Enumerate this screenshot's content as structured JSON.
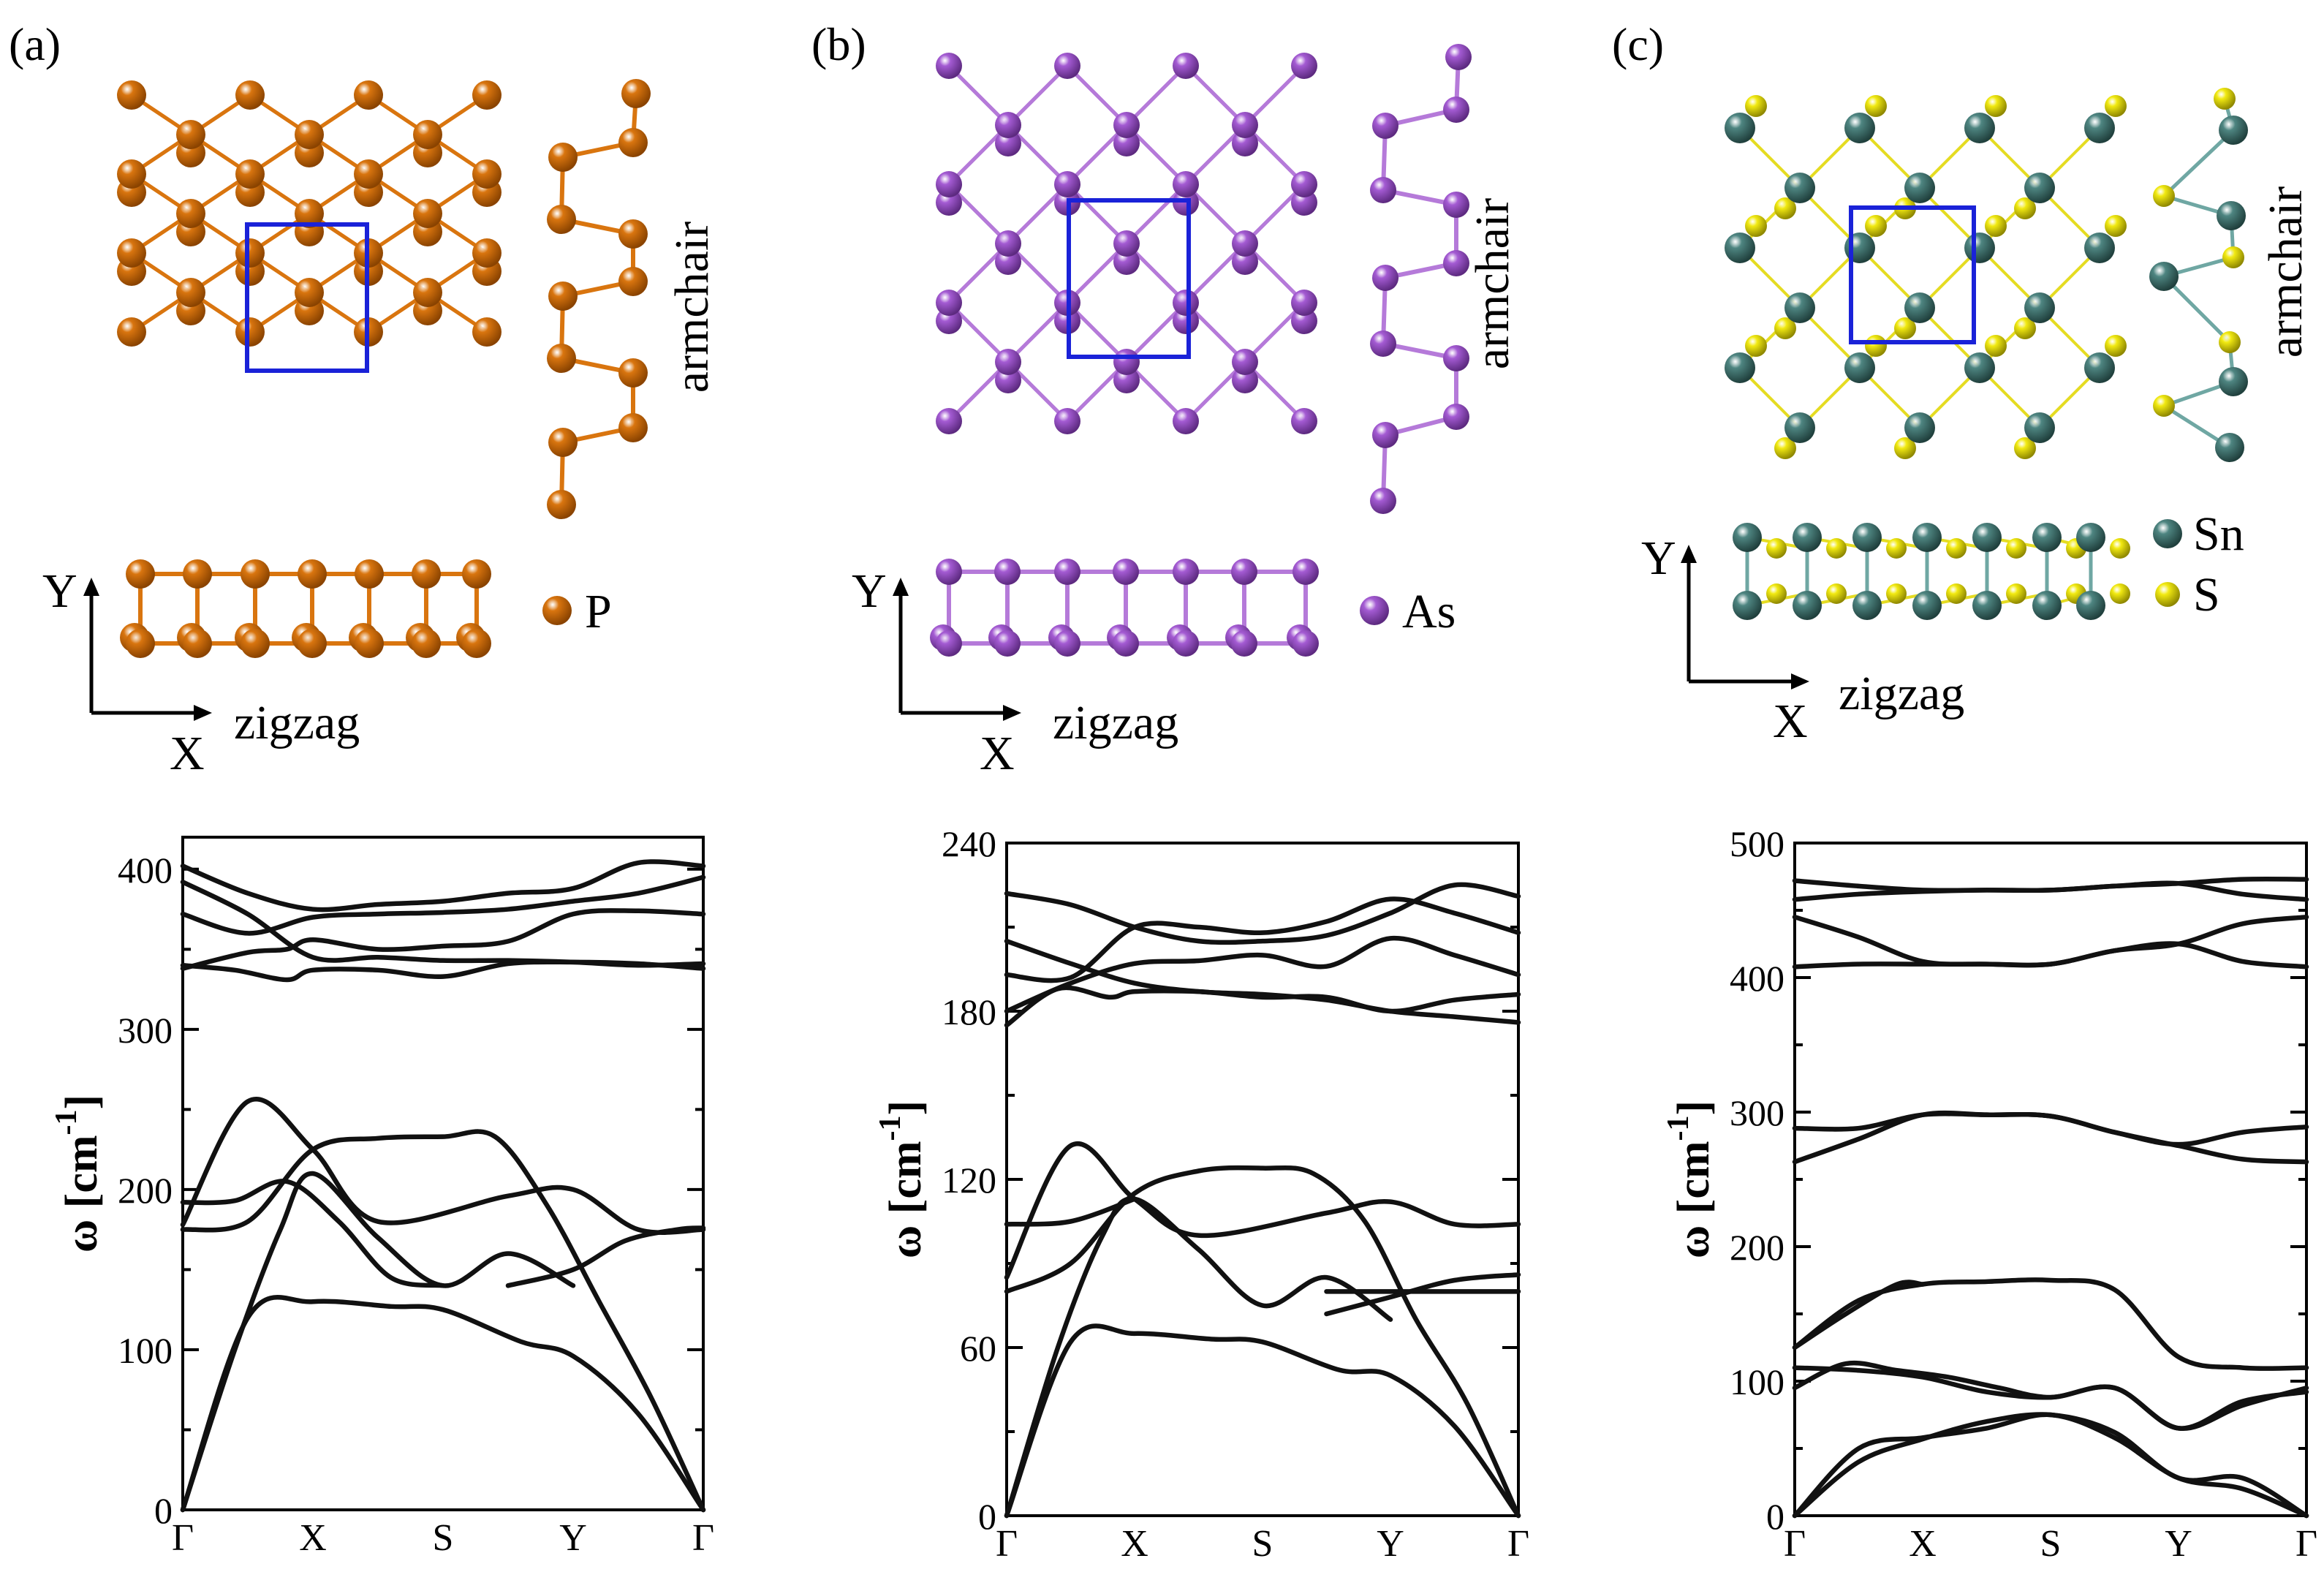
{
  "panels": [
    {
      "id": "a",
      "label": "(a)",
      "elements": [
        {
          "symbol": "P",
          "color": "#d9750f",
          "dark": "#8a4300"
        }
      ],
      "armchair_label": "armchair",
      "zigzag_label": "zigzag",
      "x_axis": "X",
      "y_axis": "Y"
    },
    {
      "id": "b",
      "label": "(b)",
      "elements": [
        {
          "symbol": "As",
          "color": "#a45bd3",
          "dark": "#5d2a80"
        }
      ],
      "armchair_label": "armchair",
      "zigzag_label": "zigzag",
      "x_axis": "X",
      "y_axis": "Y"
    },
    {
      "id": "c",
      "label": "(c)",
      "elements": [
        {
          "symbol": "Sn",
          "color": "#4e8581",
          "dark": "#20403d"
        },
        {
          "symbol": "S",
          "color": "#f2ea12",
          "dark": "#8f8800"
        }
      ],
      "armchair_label": "armchair",
      "zigzag_label": "zigzag",
      "x_axis": "X",
      "y_axis": "Y"
    }
  ],
  "unit_cell_color": "#1a22d8",
  "chart_data": [
    {
      "type": "line",
      "panel": "a",
      "ylabel_main": "ω [cm",
      "ylabel_sup": "-1",
      "ylabel_close": "]",
      "xtick_labels": [
        "Γ",
        "X",
        "S",
        "Y",
        "Γ"
      ],
      "xtick_positions": [
        0,
        1,
        2,
        3,
        4
      ],
      "ylim": [
        0,
        420
      ],
      "yticks": [
        0,
        100,
        200,
        300,
        400
      ],
      "series": [
        {
          "x": [
            0,
            0.5,
            1,
            1.6,
            2,
            2.6,
            3,
            3.5,
            4
          ],
          "y": [
            0,
            120,
            130,
            127,
            125,
            105,
            96,
            60,
            0
          ]
        },
        {
          "x": [
            0,
            0.4,
            0.75,
            1,
            1.5,
            2,
            2.5,
            3
          ],
          "y": [
            0,
            100,
            175,
            210,
            170,
            140,
            160,
            140
          ]
        },
        {
          "x": [
            0,
            0.5,
            1,
            1.5,
            2,
            2.4,
            2.8,
            3.2,
            3.6,
            4
          ],
          "y": [
            175,
            180,
            225,
            232,
            233,
            233,
            190,
            130,
            70,
            0
          ]
        },
        {
          "x": [
            0,
            0.5,
            1,
            1.5,
            2.5,
            3,
            3.5,
            4
          ],
          "y": [
            178,
            255,
            225,
            180,
            196,
            200,
            175,
            175
          ]
        },
        {
          "x": [
            0,
            0.4,
            0.8,
            1.2,
            1.6,
            2
          ],
          "y": [
            192,
            193,
            205,
            180,
            145,
            140
          ]
        },
        {
          "x": [
            2.5,
            3,
            3.4,
            3.8,
            4
          ],
          "y": [
            140,
            150,
            168,
            175,
            176
          ]
        },
        {
          "x": [
            0,
            0.4,
            0.8,
            1,
            1.5,
            2,
            2.5,
            3,
            3.5,
            4
          ],
          "y": [
            340,
            337,
            331,
            337,
            337,
            333,
            341,
            342,
            341,
            338
          ]
        },
        {
          "x": [
            0,
            0.5,
            0.8,
            1,
            1.5,
            2,
            2.5,
            3,
            3.5,
            4
          ],
          "y": [
            338,
            348,
            350,
            356,
            350,
            352,
            355,
            372,
            374,
            372
          ]
        },
        {
          "x": [
            0,
            0.5,
            1,
            1.5,
            2,
            2.5,
            3,
            3.5,
            4
          ],
          "y": [
            372,
            360,
            370,
            372,
            373,
            375,
            380,
            385,
            395
          ]
        },
        {
          "x": [
            0,
            0.5,
            1,
            1.5,
            2,
            2.5,
            3,
            3.5,
            4
          ],
          "y": [
            402,
            385,
            375,
            378,
            380,
            385,
            388,
            404,
            402
          ]
        },
        {
          "x": [
            0,
            0.5,
            1,
            1.5,
            2,
            2.5,
            3,
            3.5,
            4
          ],
          "y": [
            392,
            372,
            345,
            345,
            343,
            343,
            342,
            340,
            341
          ]
        }
      ]
    },
    {
      "type": "line",
      "panel": "b",
      "ylabel_main": "ω [cm",
      "ylabel_sup": "-1",
      "ylabel_close": "]",
      "xtick_labels": [
        "Γ",
        "X",
        "S",
        "Y",
        "Γ"
      ],
      "xtick_positions": [
        0,
        1,
        2,
        3,
        4
      ],
      "ylim": [
        0,
        240
      ],
      "yticks": [
        0,
        60,
        120,
        180,
        240
      ],
      "series": [
        {
          "x": [
            0,
            0.5,
            1,
            1.6,
            2,
            2.6,
            3,
            3.5,
            4
          ],
          "y": [
            0,
            62,
            65,
            63,
            62,
            52,
            50,
            32,
            0
          ]
        },
        {
          "x": [
            0,
            0.4,
            0.75,
            1,
            1.5,
            2,
            2.5,
            3
          ],
          "y": [
            0,
            60,
            100,
            113,
            95,
            75,
            85,
            70
          ]
        },
        {
          "x": [
            0,
            0.5,
            1,
            1.5,
            2,
            2.4,
            2.8,
            3.2,
            3.6,
            4
          ],
          "y": [
            80,
            90,
            115,
            123,
            124,
            122,
            105,
            70,
            40,
            0
          ]
        },
        {
          "x": [
            0,
            0.5,
            1,
            1.5,
            2.5,
            3,
            3.5,
            4
          ],
          "y": [
            85,
            132,
            113,
            100,
            108,
            112,
            104,
            104
          ]
        },
        {
          "x": [
            0,
            0.5,
            1
          ],
          "y": [
            104,
            105,
            113
          ]
        },
        {
          "x": [
            2.5,
            3,
            3.5,
            4
          ],
          "y": [
            72,
            78,
            84,
            86
          ]
        },
        {
          "x": [
            2.5,
            3,
            3.5,
            4
          ],
          "y": [
            80,
            80,
            80,
            80
          ]
        },
        {
          "x": [
            0,
            0.4,
            0.8,
            1,
            1.5,
            2,
            2.5,
            3,
            3.5,
            4
          ],
          "y": [
            175,
            188,
            185,
            187,
            187,
            185,
            185,
            180,
            184,
            186
          ]
        },
        {
          "x": [
            0,
            0.5,
            1,
            1.5,
            2,
            2.5,
            3,
            3.5,
            4
          ],
          "y": [
            180,
            190,
            197,
            198,
            200,
            196,
            206,
            200,
            193
          ]
        },
        {
          "x": [
            0,
            0.5,
            1,
            1.5,
            2,
            2.5,
            3,
            3.5,
            4
          ],
          "y": [
            193,
            192,
            210,
            210,
            208,
            212,
            220,
            215,
            208
          ]
        },
        {
          "x": [
            0,
            0.5,
            1,
            1.5,
            2,
            2.5,
            3,
            3.5,
            4
          ],
          "y": [
            222,
            218,
            210,
            205,
            205,
            207,
            215,
            225,
            221
          ]
        },
        {
          "x": [
            0,
            0.5,
            1,
            1.5,
            2,
            2.5,
            3,
            3.5,
            4
          ],
          "y": [
            205,
            197,
            190,
            187,
            186,
            184,
            180,
            178,
            176
          ]
        }
      ]
    },
    {
      "type": "line",
      "panel": "c",
      "ylabel_main": "ω [cm",
      "ylabel_sup": "-1",
      "ylabel_close": "]",
      "xtick_labels": [
        "Γ",
        "X",
        "S",
        "Y",
        "Γ"
      ],
      "xtick_positions": [
        0,
        1,
        2,
        3,
        4
      ],
      "ylim": [
        0,
        500
      ],
      "yticks": [
        0,
        100,
        200,
        300,
        400,
        500
      ],
      "series": [
        {
          "x": [
            0,
            0.5,
            1,
            1.5,
            2,
            2.5,
            3,
            3.5,
            4
          ],
          "y": [
            0,
            50,
            58,
            65,
            75,
            58,
            28,
            20,
            0
          ]
        },
        {
          "x": [
            0,
            0.5,
            1,
            1.5,
            2,
            2.5,
            3,
            3.5,
            4
          ],
          "y": [
            0,
            40,
            57,
            70,
            75,
            62,
            28,
            28,
            0
          ]
        },
        {
          "x": [
            0,
            0.4,
            0.8,
            1.2,
            1.6,
            2,
            2.5,
            3,
            3.5,
            4
          ],
          "y": [
            95,
            113,
            108,
            103,
            95,
            88,
            95,
            65,
            85,
            92
          ]
        },
        {
          "x": [
            0,
            0.5,
            1,
            1.5,
            2,
            2.5,
            3,
            3.5,
            4
          ],
          "y": [
            110,
            108,
            103,
            92,
            88,
            95,
            65,
            82,
            95
          ]
        },
        {
          "x": [
            0,
            0.5,
            1,
            1.5,
            2,
            2.5,
            3,
            3.5,
            4
          ],
          "y": [
            125,
            160,
            172,
            174,
            175,
            168,
            118,
            110,
            110
          ]
        },
        {
          "x": [
            0,
            0.4,
            0.8,
            1
          ],
          "y": [
            125,
            150,
            172,
            172
          ]
        },
        {
          "x": [
            0,
            0.5,
            1,
            1.5,
            2,
            2.5,
            3,
            3.5,
            4
          ],
          "y": [
            263,
            280,
            298,
            298,
            297,
            285,
            275,
            265,
            263
          ]
        },
        {
          "x": [
            0,
            0.5,
            1,
            1.5,
            2,
            2.5,
            3,
            3.5,
            4
          ],
          "y": [
            288,
            288,
            298,
            298,
            297,
            285,
            276,
            285,
            289
          ]
        },
        {
          "x": [
            0,
            0.5,
            1,
            1.5,
            2,
            2.5,
            3,
            3.5,
            4
          ],
          "y": [
            408,
            410,
            410,
            410,
            410,
            420,
            425,
            412,
            408
          ]
        },
        {
          "x": [
            0,
            0.5,
            1,
            1.5,
            2,
            2.5,
            3,
            3.5,
            4
          ],
          "y": [
            445,
            430,
            412,
            410,
            410,
            420,
            425,
            440,
            445
          ]
        },
        {
          "x": [
            0,
            0.5,
            1,
            1.5,
            2,
            2.5,
            3,
            3.5,
            4
          ],
          "y": [
            458,
            462,
            464,
            465,
            465,
            468,
            470,
            462,
            458
          ]
        },
        {
          "x": [
            0,
            0.5,
            1,
            1.5,
            2,
            2.5,
            3,
            3.5,
            4
          ],
          "y": [
            472,
            468,
            465,
            465,
            465,
            468,
            470,
            473,
            473
          ]
        }
      ]
    }
  ]
}
